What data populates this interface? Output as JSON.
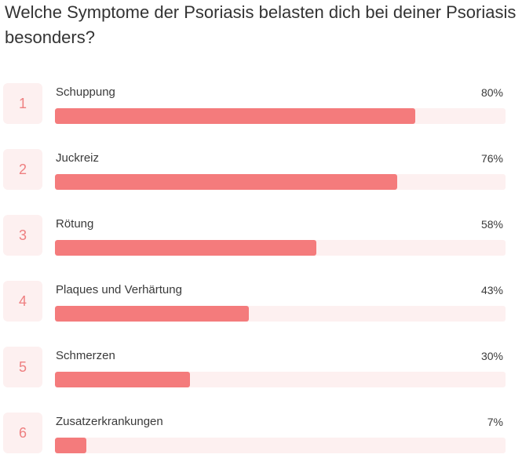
{
  "question": "Welche Symptome der Psoriasis belasten dich bei deiner Psoriasis besonders?",
  "colors": {
    "bar_fill": "#f47b7c",
    "bar_track": "#fdf0f0",
    "rank_text": "#ee7f80"
  },
  "results": [
    {
      "rank": "1",
      "label": "Schuppung",
      "percent_text": "80%",
      "value": 80
    },
    {
      "rank": "2",
      "label": "Juckreiz",
      "percent_text": "76%",
      "value": 76
    },
    {
      "rank": "3",
      "label": "Rötung",
      "percent_text": "58%",
      "value": 58
    },
    {
      "rank": "4",
      "label": "Plaques und Verhärtung",
      "percent_text": "43%",
      "value": 43
    },
    {
      "rank": "5",
      "label": "Schmerzen",
      "percent_text": "30%",
      "value": 30
    },
    {
      "rank": "6",
      "label": "Zusatzerkrankungen",
      "percent_text": "7%",
      "value": 7
    }
  ]
}
